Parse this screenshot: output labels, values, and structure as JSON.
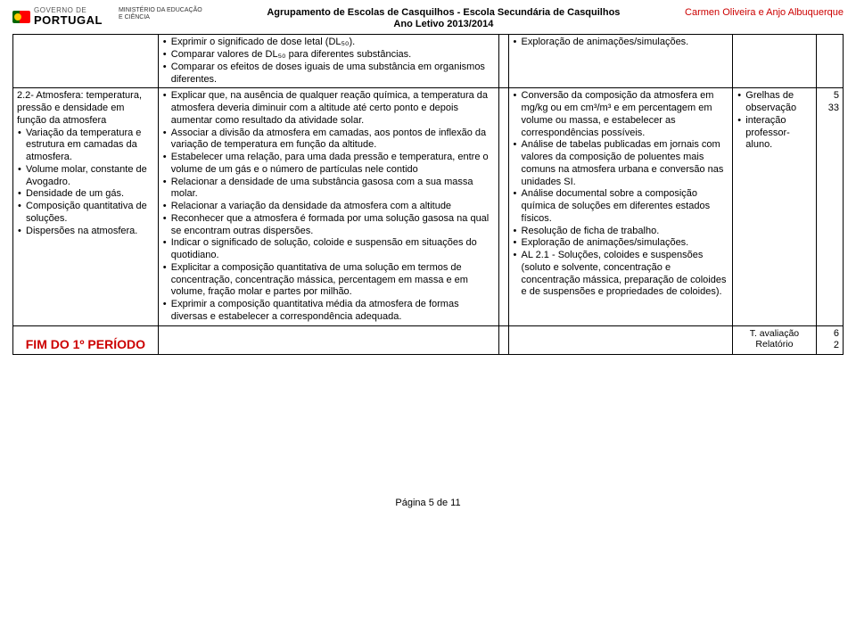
{
  "header": {
    "governo": "GOVERNO DE",
    "portugal": "PORTUGAL",
    "ministerio1": "MINISTÉRIO DA EDUCAÇÃO",
    "ministerio2": "E CIÊNCIA",
    "center1": "Agrupamento de Escolas de Casquilhos - Escola Secundária de Casquilhos",
    "center2": "Ano Letivo 2013/2014",
    "right": "Carmen Oliveira e Anjo Albuquerque"
  },
  "row1": {
    "col2": {
      "items": [
        "Exprimir o significado de dose letal (DL₅₀).",
        "Comparar valores de DL₅₀ para diferentes substâncias.",
        "Comparar os efeitos de doses iguais de uma substância em organismos diferentes."
      ]
    },
    "col4": {
      "items": [
        "Exploração de animações/simulações."
      ]
    }
  },
  "row2": {
    "col1": {
      "title": "2.2- Atmosfera: temperatura, pressão e densidade em função da atmosfera",
      "items": [
        "Variação da temperatura e estrutura em camadas da atmosfera.",
        "Volume molar, constante de Avogadro.",
        "Densidade de um gás.",
        "Composição quantitativa de soluções.",
        "Dispersões na atmosfera."
      ]
    },
    "col2": {
      "items": [
        "Explicar que, na ausência de qualquer reação química, a temperatura da atmosfera deveria diminuir com a altitude até certo ponto e depois aumentar como resultado da atividade solar.",
        "Associar a divisão da atmosfera em camadas, aos pontos de inflexão da variação de temperatura em função da altitude.",
        "Estabelecer uma relação, para uma dada pressão e temperatura, entre o volume de um gás e o número de partículas nele contido",
        "Relacionar a densidade de uma substância gasosa com a sua massa molar.",
        "Relacionar a variação da densidade da atmosfera com a altitude",
        "Reconhecer que a atmosfera é formada por uma solução gasosa na qual se encontram outras dispersões.",
        "Indicar o significado de solução, coloide e suspensão em situações do quotidiano.",
        "Explicitar a composição quantitativa de uma solução em termos de concentração, concentração mássica, percentagem em massa e em volume, fração molar e partes por milhão.",
        "Exprimir a composição quantitativa média da atmosfera de formas diversas e estabelecer a correspondência adequada."
      ]
    },
    "col4": {
      "items": [
        "Conversão da composição da atmosfera em mg/kg ou em cm³/m³ e em percentagem em volume ou massa, e estabelecer as correspondências possíveis.",
        "Análise de tabelas publicadas em jornais com valores da composição de poluentes mais comuns na atmosfera urbana e conversão nas unidades SI.",
        "Análise documental sobre a composição química de soluções em diferentes estados físicos.",
        "Resolução de ficha de trabalho.",
        "Exploração de animações/simulações.",
        "AL 2.1 - Soluções, coloides e suspensões (soluto e solvente, concentração e concentração mássica, preparação de coloides e de suspensões e propriedades de coloides)."
      ]
    },
    "col5": {
      "items": [
        "Grelhas de observação",
        "interação professor-aluno."
      ]
    },
    "col6a": "5",
    "col6b": "33"
  },
  "row3": {
    "fim": "FIM DO 1º PERÍODO",
    "eval1": "T. avaliação",
    "eval2": "Relatório",
    "col6a": "6",
    "col6b": "2"
  },
  "footer": "Página 5 de 11"
}
